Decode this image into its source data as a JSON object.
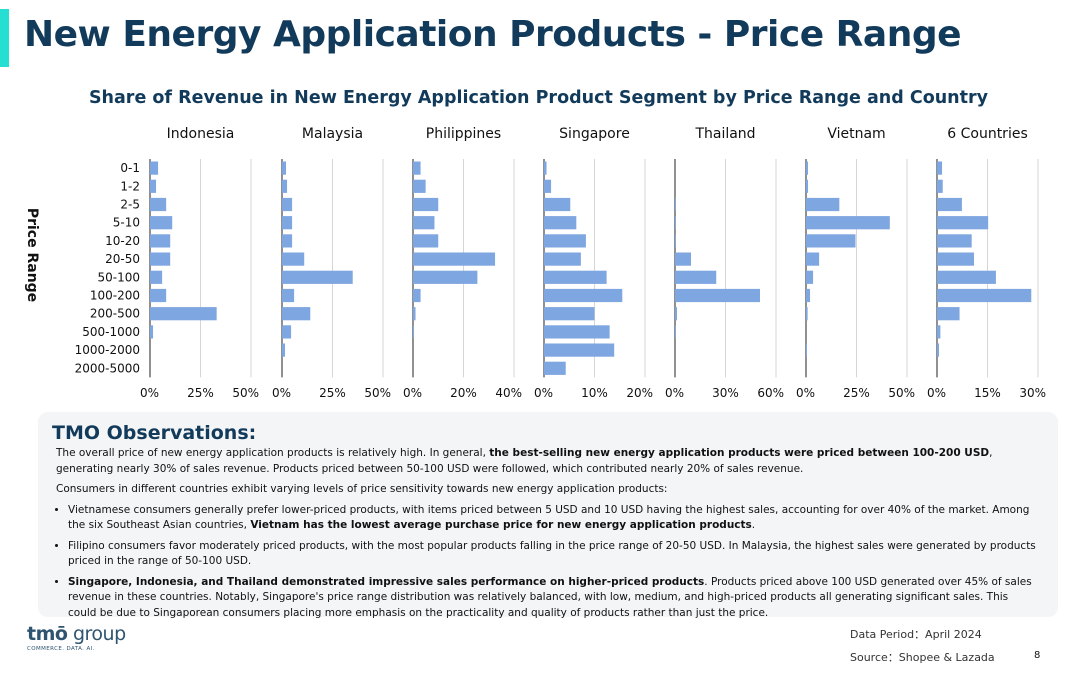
{
  "page": {
    "title": "New Energy Application Products - Price Range",
    "page_number": "8"
  },
  "chart_data": {
    "type": "bar",
    "orientation": "horizontal",
    "title": "Share of Revenue in New Energy Application Product Segment by Price Range and Country",
    "ylabel": "Price Range",
    "categories": [
      "0-1",
      "1-2",
      "2-5",
      "5-10",
      "10-20",
      "20-50",
      "50-100",
      "100-200",
      "200-500",
      "500-1000",
      "1000-2000",
      "2000-5000"
    ],
    "bar_color": "#7ea6e0",
    "grid": true,
    "panels": [
      {
        "name": "Indonesia",
        "xlim": [
          0,
          0.5
        ],
        "ticks": [
          0,
          0.25,
          0.5
        ],
        "tick_labels": [
          "0%",
          "25%",
          "50%"
        ],
        "values": [
          0.04,
          0.03,
          0.08,
          0.11,
          0.1,
          0.1,
          0.06,
          0.08,
          0.33,
          0.015,
          0,
          0
        ]
      },
      {
        "name": "Malaysia",
        "xlim": [
          0,
          0.5
        ],
        "ticks": [
          0,
          0.25,
          0.5
        ],
        "tick_labels": [
          "0%",
          "25%",
          "50%"
        ],
        "values": [
          0.02,
          0.025,
          0.05,
          0.05,
          0.05,
          0.11,
          0.35,
          0.06,
          0.14,
          0.045,
          0.015,
          0
        ]
      },
      {
        "name": "Philippines",
        "xlim": [
          0,
          0.4
        ],
        "ticks": [
          0,
          0.2,
          0.4
        ],
        "tick_labels": [
          "0%",
          "20%",
          "40%"
        ],
        "values": [
          0.03,
          0.05,
          0.1,
          0.085,
          0.1,
          0.325,
          0.255,
          0.03,
          0.01,
          0.003,
          0,
          0
        ]
      },
      {
        "name": "Singapore",
        "xlim": [
          0,
          0.2
        ],
        "ticks": [
          0,
          0.1,
          0.2
        ],
        "tick_labels": [
          "0%",
          "10%",
          "20%"
        ],
        "values": [
          0.005,
          0.014,
          0.052,
          0.064,
          0.083,
          0.073,
          0.124,
          0.155,
          0.1,
          0.13,
          0.139,
          0.043
        ]
      },
      {
        "name": "Thailand",
        "xlim": [
          0,
          0.6
        ],
        "ticks": [
          0,
          0.3,
          0.6
        ],
        "tick_labels": [
          "0%",
          "30%",
          "60%"
        ],
        "values": [
          0,
          0,
          0.003,
          0.003,
          0.003,
          0.095,
          0.245,
          0.505,
          0.012,
          0.002,
          0,
          0
        ]
      },
      {
        "name": "Vietnam",
        "xlim": [
          0,
          0.5
        ],
        "ticks": [
          0,
          0.25,
          0.5
        ],
        "tick_labels": [
          "0%",
          "25%",
          "50%"
        ],
        "values": [
          0.01,
          0.01,
          0.165,
          0.415,
          0.245,
          0.065,
          0.035,
          0.02,
          0.008,
          0,
          0.003,
          0
        ]
      },
      {
        "name": "6 Countries",
        "xlim": [
          0,
          0.3
        ],
        "ticks": [
          0,
          0.15,
          0.3
        ],
        "tick_labels": [
          "0%",
          "15%",
          "30%"
        ],
        "values": [
          0.015,
          0.017,
          0.074,
          0.152,
          0.103,
          0.11,
          0.175,
          0.28,
          0.067,
          0.01,
          0.006,
          0
        ]
      }
    ]
  },
  "observations": {
    "title": "TMO Observations:",
    "p1_a": "The overall price of new energy application products is relatively high. In general, ",
    "p1_b": "the best-selling new energy application products were priced between 100-200 USD",
    "p1_c": ", generating nearly 30% of sales revenue. Products priced between 50-100 USD were followed, which contributed nearly 20% of sales revenue.",
    "p2": "Consumers in different countries exhibit varying levels of price sensitivity towards new energy application products:",
    "b1_a": "Vietnamese consumers generally prefer lower-priced products, with items priced between 5 USD and 10 USD having the highest sales, accounting for over 40% of the market. Among the six Southeast Asian countries, ",
    "b1_b": "Vietnam has the lowest average purchase price for new energy application products",
    "b1_c": ".",
    "b2": "Filipino consumers favor moderately priced products, with the most popular products falling in the price range of 20-50 USD. In Malaysia, the highest sales were generated by products priced in the range of 50-100 USD.",
    "b3_a": "Singapore, Indonesia, and Thailand demonstrated impressive sales performance on higher-priced products",
    "b3_b": ". Products priced above 100 USD generated over 45% of sales revenue in these countries. Notably, Singapore's price range distribution was relatively balanced, with low, medium, and high-priced products all generating significant sales. This could be due to Singaporean consumers placing more emphasis on the practicality and quality of products rather than just the price."
  },
  "footer": {
    "logo_text_a": "tmō",
    "logo_text_b": " group",
    "logo_tagline": "COMMERCE. DATA. AI.",
    "data_period": "Data Period：April 2024",
    "source": "Source：Shopee & Lazada"
  },
  "colors": {
    "accent": "#25e0d2",
    "title": "#123a5a",
    "bar": "#7ea6e0",
    "grid": "#d6d6d6",
    "panel_bg": "#f4f5f7"
  }
}
